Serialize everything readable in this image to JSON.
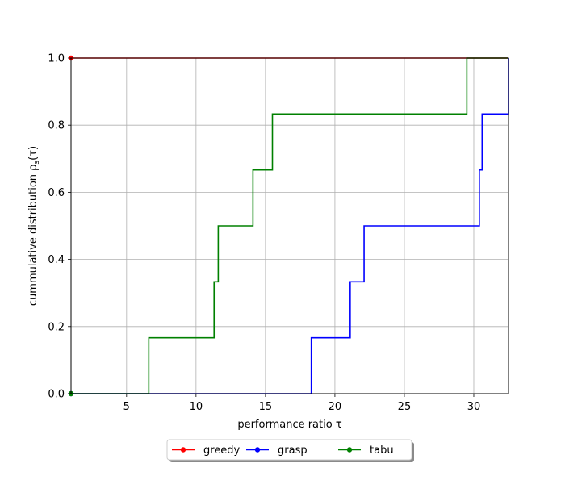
{
  "chart_data": {
    "type": "line",
    "title": "",
    "xlabel": "performance ratio τ",
    "ylabel": "cummulative distribution ρs(τ)",
    "xlim": [
      1,
      32.5
    ],
    "ylim": [
      0,
      1.0
    ],
    "xticks": [
      5,
      10,
      15,
      20,
      25,
      30
    ],
    "yticks": [
      0.0,
      0.2,
      0.4,
      0.6,
      0.8,
      1.0
    ],
    "xtick_labels": [
      "5",
      "10",
      "15",
      "20",
      "25",
      "30"
    ],
    "ytick_labels": [
      "0.0",
      "0.2",
      "0.4",
      "0.6",
      "0.8",
      "1.0"
    ],
    "grid": true,
    "legend_position": "bottom-center-outside",
    "legend_columns": 3,
    "series": [
      {
        "name": "greedy",
        "color": "#ff0000",
        "step": "post",
        "x": [
          1.0,
          32.5
        ],
        "y": [
          1.0,
          1.0
        ],
        "marker_x": 1.0,
        "marker_y": 1.0
      },
      {
        "name": "grasp",
        "color": "#0000ff",
        "step": "post",
        "x": [
          1.0,
          18.3,
          21.1,
          22.1,
          30.4,
          30.6,
          32.5,
          32.5
        ],
        "y": [
          0.0,
          0.1667,
          0.3333,
          0.5,
          0.6667,
          0.8333,
          0.8333,
          1.0
        ],
        "marker_x": 1.0,
        "marker_y": 0.0
      },
      {
        "name": "tabu",
        "color": "#008000",
        "step": "post",
        "x": [
          1.0,
          6.6,
          11.3,
          11.6,
          14.1,
          15.5,
          29.5,
          32.5
        ],
        "y": [
          0.0,
          0.1667,
          0.3333,
          0.5,
          0.6667,
          0.8333,
          1.0,
          1.0
        ],
        "marker_x": 1.0,
        "marker_y": 0.0
      }
    ]
  }
}
